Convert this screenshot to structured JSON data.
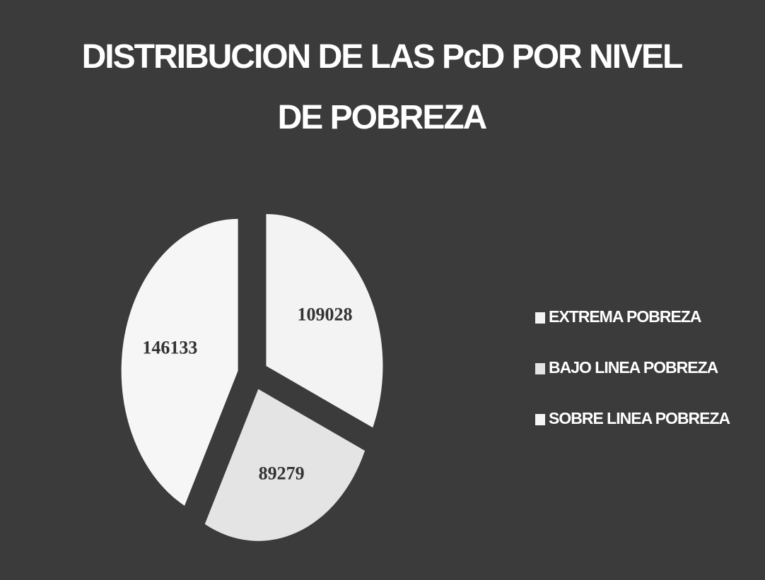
{
  "chart_data": {
    "type": "pie",
    "title": "DISTRIBUCION DE LAS PcD POR NIVEL DE POBREZA",
    "categories": [
      "EXTREMA POBREZA",
      "BAJO LINEA POBREZA",
      "SOBRE LINEA POBREZA"
    ],
    "values": [
      109028,
      89279,
      146133
    ],
    "colors": [
      "#f3f3f3",
      "#e4e4e4",
      "#f6f6f6"
    ],
    "legend": "right"
  }
}
